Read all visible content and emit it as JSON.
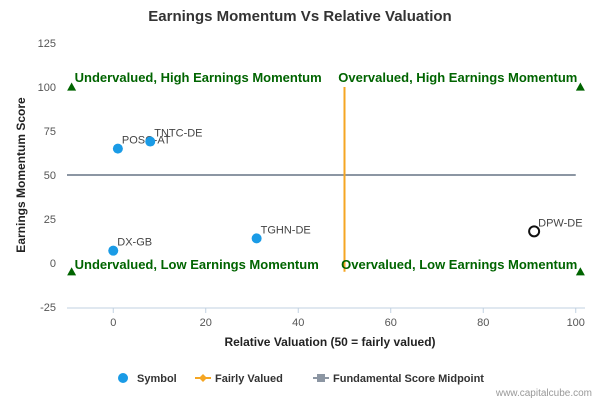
{
  "chart_data": {
    "type": "scatter",
    "title": "Earnings Momentum Vs Relative Valuation",
    "xlabel": "Relative Valuation (50 = fairly valued)",
    "ylabel": "Earnings Momentum Score",
    "xlim": [
      -10,
      102
    ],
    "ylim": [
      -25,
      125
    ],
    "xticks": [
      "0",
      "20",
      "40",
      "60",
      "80",
      "100"
    ],
    "yticks": [
      "125",
      "100",
      "75",
      "50",
      "25",
      "0",
      "-25"
    ],
    "grid": false,
    "legend_position": "bottom",
    "points": [
      {
        "label": "POSO-AT",
        "x": 1,
        "y": 65,
        "highlight": false
      },
      {
        "label": "TNTC-DE",
        "x": 8,
        "y": 69,
        "highlight": false
      },
      {
        "label": "TGHN-DE",
        "x": 31,
        "y": 14,
        "highlight": false
      },
      {
        "label": "DX-GB",
        "x": 0,
        "y": 7,
        "highlight": false
      },
      {
        "label": "DPW-DE",
        "x": 91,
        "y": 18,
        "highlight": true
      }
    ],
    "fairly_valued_line": {
      "x": 50,
      "y_range": [
        -5,
        100
      ]
    },
    "midpoint_line": {
      "y": 50,
      "x_range": [
        -10,
        100
      ]
    },
    "corner_markers": [
      {
        "x": -9,
        "y": 100
      },
      {
        "x": 101,
        "y": 100
      },
      {
        "x": -9,
        "y": -5
      },
      {
        "x": 101,
        "y": -5
      }
    ],
    "quadrant_labels": [
      {
        "text": "Undervalued, High Earnings Momentum",
        "x": -9,
        "y": 105,
        "anchor": "start"
      },
      {
        "text": "Overvalued, High Earnings Momentum",
        "x": 101,
        "y": 105,
        "anchor": "end"
      },
      {
        "text": "Undervalued, Low Earnings Momentum",
        "x": -9,
        "y": -1,
        "anchor": "start"
      },
      {
        "text": "Overvalued, Low Earnings Momentum",
        "x": 101,
        "y": -1,
        "anchor": "end"
      }
    ],
    "legend": [
      {
        "name": "Symbol",
        "kind": "circle"
      },
      {
        "name": "Fairly Valued",
        "kind": "line-diamond"
      },
      {
        "name": "Fundamental Score Midpoint",
        "kind": "line-square"
      }
    ],
    "colors": {
      "symbol": "#1a9be6",
      "fairly_valued": "#f5a623",
      "midpoint": "#8c96a3",
      "quadrant_text": "#006400",
      "corner_marker": "#006400"
    }
  },
  "credit": "www.capitalcube.com"
}
